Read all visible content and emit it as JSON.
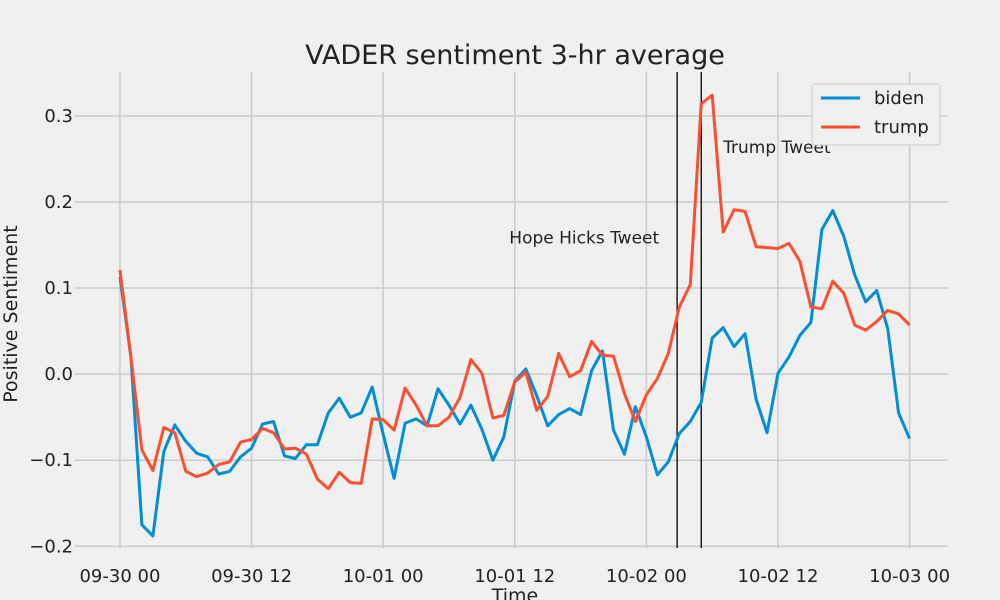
{
  "chart_data": {
    "type": "line",
    "title": "VADER sentiment 3-hr average",
    "xlabel": "Time",
    "ylabel": "Positive Sentiment",
    "x_unit": "hours since 09-30 00",
    "xlim": [
      -4.1,
      75.5
    ],
    "ylim": [
      -0.202,
      0.351
    ],
    "grid": true,
    "legend_position": "top-right",
    "x_ticks": [
      {
        "value": 0,
        "label": "09-30 00"
      },
      {
        "value": 12,
        "label": "09-30 12"
      },
      {
        "value": 24,
        "label": "10-01 00"
      },
      {
        "value": 36,
        "label": "10-01 12"
      },
      {
        "value": 48,
        "label": "10-02 00"
      },
      {
        "value": 60,
        "label": "10-02 12"
      },
      {
        "value": 72,
        "label": "10-03 00"
      }
    ],
    "y_ticks": [
      {
        "value": -0.2,
        "label": "−0.2"
      },
      {
        "value": -0.1,
        "label": "−0.1"
      },
      {
        "value": 0.0,
        "label": "0.0"
      },
      {
        "value": 0.1,
        "label": "0.1"
      },
      {
        "value": 0.2,
        "label": "0.2"
      },
      {
        "value": 0.3,
        "label": "0.3"
      }
    ],
    "series": [
      {
        "name": "biden",
        "color": "#008fd5",
        "values": [
          0.113,
          0.02,
          -0.175,
          -0.188,
          -0.09,
          -0.059,
          -0.078,
          -0.092,
          -0.096,
          -0.116,
          -0.113,
          -0.096,
          -0.086,
          -0.058,
          -0.055,
          -0.095,
          -0.098,
          -0.082,
          -0.082,
          -0.045,
          -0.028,
          -0.05,
          -0.045,
          -0.015,
          -0.07,
          -0.121,
          -0.057,
          -0.052,
          -0.06,
          -0.017,
          -0.036,
          -0.058,
          -0.036,
          -0.064,
          -0.1,
          -0.073,
          -0.008,
          0.006,
          -0.025,
          -0.06,
          -0.047,
          -0.04,
          -0.047,
          0.004,
          0.027,
          -0.065,
          -0.093,
          -0.038,
          -0.073,
          -0.117,
          -0.102,
          -0.069,
          -0.055,
          -0.033,
          0.042,
          0.054,
          0.032,
          0.047,
          -0.029,
          -0.068,
          0.001,
          0.02,
          0.045,
          0.06,
          0.168,
          0.19,
          0.16,
          0.115,
          0.084,
          0.097,
          0.053,
          -0.045,
          -0.075
        ]
      },
      {
        "name": "trump",
        "color": "#fc4f30",
        "values": [
          0.121,
          0.02,
          -0.088,
          -0.112,
          -0.062,
          -0.068,
          -0.113,
          -0.119,
          -0.115,
          -0.105,
          -0.102,
          -0.079,
          -0.076,
          -0.063,
          -0.068,
          -0.087,
          -0.086,
          -0.093,
          -0.122,
          -0.133,
          -0.114,
          -0.126,
          -0.127,
          -0.052,
          -0.053,
          -0.065,
          -0.016,
          -0.036,
          -0.06,
          -0.06,
          -0.05,
          -0.027,
          0.017,
          0.001,
          -0.051,
          -0.048,
          -0.009,
          0.002,
          -0.042,
          -0.026,
          0.024,
          -0.003,
          0.004,
          0.038,
          0.022,
          0.021,
          -0.023,
          -0.055,
          -0.024,
          -0.005,
          0.024,
          0.078,
          0.104,
          0.314,
          0.324,
          0.165,
          0.191,
          0.189,
          0.148,
          0.147,
          0.146,
          0.152,
          0.131,
          0.078,
          0.076,
          0.108,
          0.094,
          0.057,
          0.051,
          0.061,
          0.074,
          0.07,
          0.057
        ]
      }
    ],
    "annotations": [
      {
        "text": "Hope Hicks Tweet",
        "x": 35.5,
        "y": 0.152
      },
      {
        "text": "Trump Tweet",
        "x": 55,
        "y": 0.257
      }
    ],
    "vertical_lines": [
      50.8,
      53.0
    ]
  }
}
